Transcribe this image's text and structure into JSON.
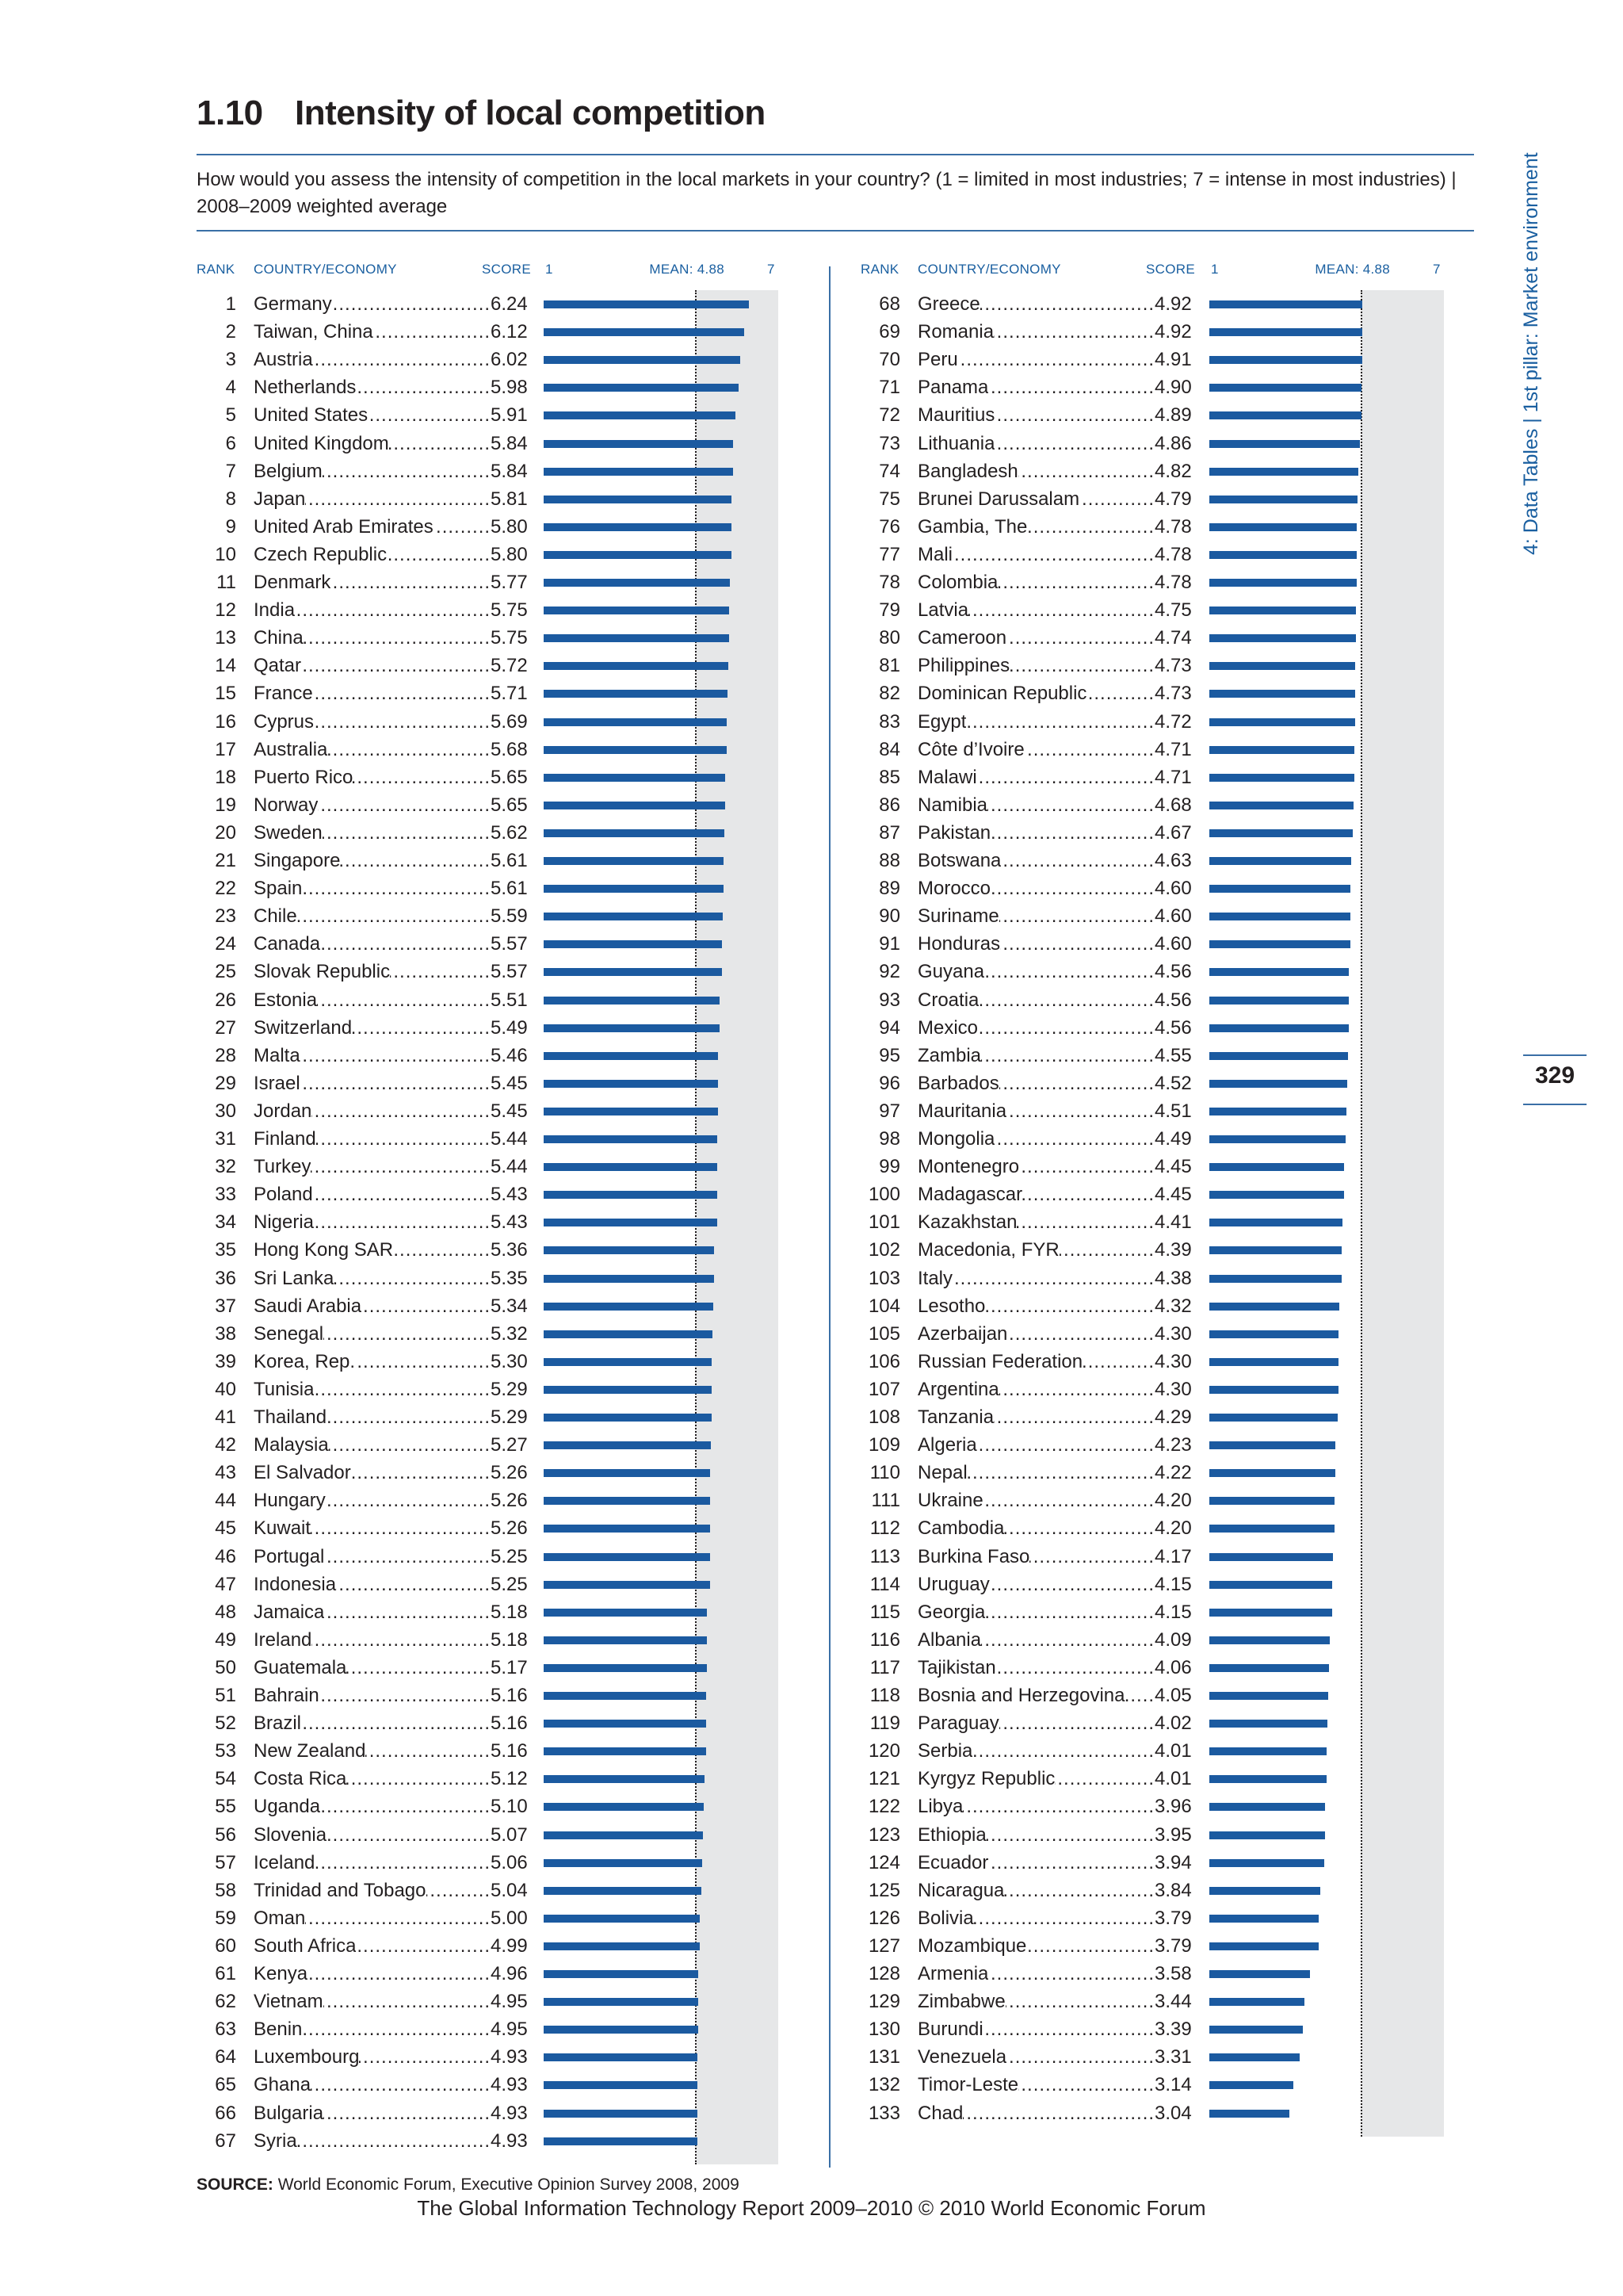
{
  "header": {
    "number": "1.10",
    "title": "Intensity of local competition",
    "question": "How would you assess the intensity of competition in the local markets in your country? (1 = limited in most industries; 7 = intense in most industries) | 2008–2009 weighted average"
  },
  "columns": {
    "rank": "RANK",
    "country": "COUNTRY/ECONOMY",
    "score": "SCORE",
    "scale_min": "1",
    "mean": "MEAN: 4.88",
    "scale_max": "7"
  },
  "side_tab": "4: Data Tables | 1st pillar: Market environment",
  "page_number": "329",
  "source_label": "SOURCE:",
  "source_text": "World Economic Forum, Executive Opinion Survey 2008, 2009",
  "footer": "The Global Information Technology Report 2009–2010 © 2010 World Economic Forum",
  "colors": {
    "bar": "#1b5aa0",
    "background_band": "#e6e7e8",
    "accent": "#1a5fa0"
  },
  "chart_data": {
    "type": "bar",
    "orientation": "horizontal",
    "xlim": [
      1,
      7
    ],
    "mean": 4.88,
    "rows": [
      {
        "rank": "1",
        "name": "Germany",
        "score": "6.24"
      },
      {
        "rank": "2",
        "name": "Taiwan, China",
        "score": "6.12"
      },
      {
        "rank": "3",
        "name": "Austria",
        "score": "6.02"
      },
      {
        "rank": "4",
        "name": "Netherlands",
        "score": "5.98"
      },
      {
        "rank": "5",
        "name": "United States",
        "score": "5.91"
      },
      {
        "rank": "6",
        "name": "United Kingdom",
        "score": "5.84"
      },
      {
        "rank": "7",
        "name": "Belgium",
        "score": "5.84"
      },
      {
        "rank": "8",
        "name": "Japan",
        "score": "5.81"
      },
      {
        "rank": "9",
        "name": "United Arab Emirates",
        "score": "5.80"
      },
      {
        "rank": "10",
        "name": "Czech Republic",
        "score": "5.80"
      },
      {
        "rank": "11",
        "name": "Denmark",
        "score": "5.77"
      },
      {
        "rank": "12",
        "name": "India",
        "score": "5.75"
      },
      {
        "rank": "13",
        "name": "China",
        "score": "5.75"
      },
      {
        "rank": "14",
        "name": "Qatar",
        "score": "5.72"
      },
      {
        "rank": "15",
        "name": "France",
        "score": "5.71"
      },
      {
        "rank": "16",
        "name": "Cyprus",
        "score": "5.69"
      },
      {
        "rank": "17",
        "name": "Australia",
        "score": "5.68"
      },
      {
        "rank": "18",
        "name": "Puerto Rico",
        "score": "5.65"
      },
      {
        "rank": "19",
        "name": "Norway",
        "score": "5.65"
      },
      {
        "rank": "20",
        "name": "Sweden",
        "score": "5.62"
      },
      {
        "rank": "21",
        "name": "Singapore",
        "score": "5.61"
      },
      {
        "rank": "22",
        "name": "Spain",
        "score": "5.61"
      },
      {
        "rank": "23",
        "name": "Chile",
        "score": "5.59"
      },
      {
        "rank": "24",
        "name": "Canada",
        "score": "5.57"
      },
      {
        "rank": "25",
        "name": "Slovak Republic",
        "score": "5.57"
      },
      {
        "rank": "26",
        "name": "Estonia",
        "score": "5.51"
      },
      {
        "rank": "27",
        "name": "Switzerland",
        "score": "5.49"
      },
      {
        "rank": "28",
        "name": "Malta",
        "score": "5.46"
      },
      {
        "rank": "29",
        "name": "Israel",
        "score": "5.45"
      },
      {
        "rank": "30",
        "name": "Jordan",
        "score": "5.45"
      },
      {
        "rank": "31",
        "name": "Finland",
        "score": "5.44"
      },
      {
        "rank": "32",
        "name": "Turkey",
        "score": "5.44"
      },
      {
        "rank": "33",
        "name": "Poland",
        "score": "5.43"
      },
      {
        "rank": "34",
        "name": "Nigeria",
        "score": "5.43"
      },
      {
        "rank": "35",
        "name": "Hong Kong SAR",
        "score": "5.36"
      },
      {
        "rank": "36",
        "name": "Sri Lanka",
        "score": "5.35"
      },
      {
        "rank": "37",
        "name": "Saudi Arabia",
        "score": "5.34"
      },
      {
        "rank": "38",
        "name": "Senegal",
        "score": "5.32"
      },
      {
        "rank": "39",
        "name": "Korea, Rep.",
        "score": "5.30"
      },
      {
        "rank": "40",
        "name": "Tunisia",
        "score": "5.29"
      },
      {
        "rank": "41",
        "name": "Thailand",
        "score": "5.29"
      },
      {
        "rank": "42",
        "name": "Malaysia",
        "score": "5.27"
      },
      {
        "rank": "43",
        "name": "El Salvador",
        "score": "5.26"
      },
      {
        "rank": "44",
        "name": "Hungary",
        "score": "5.26"
      },
      {
        "rank": "45",
        "name": "Kuwait",
        "score": "5.26"
      },
      {
        "rank": "46",
        "name": "Portugal",
        "score": "5.25"
      },
      {
        "rank": "47",
        "name": "Indonesia",
        "score": "5.25"
      },
      {
        "rank": "48",
        "name": "Jamaica",
        "score": "5.18"
      },
      {
        "rank": "49",
        "name": "Ireland",
        "score": "5.18"
      },
      {
        "rank": "50",
        "name": "Guatemala",
        "score": "5.17"
      },
      {
        "rank": "51",
        "name": "Bahrain",
        "score": "5.16"
      },
      {
        "rank": "52",
        "name": "Brazil",
        "score": "5.16"
      },
      {
        "rank": "53",
        "name": "New Zealand",
        "score": "5.16"
      },
      {
        "rank": "54",
        "name": "Costa Rica",
        "score": "5.12"
      },
      {
        "rank": "55",
        "name": "Uganda",
        "score": "5.10"
      },
      {
        "rank": "56",
        "name": "Slovenia",
        "score": "5.07"
      },
      {
        "rank": "57",
        "name": "Iceland",
        "score": "5.06"
      },
      {
        "rank": "58",
        "name": "Trinidad and Tobago",
        "score": "5.04"
      },
      {
        "rank": "59",
        "name": "Oman",
        "score": "5.00"
      },
      {
        "rank": "60",
        "name": "South Africa",
        "score": "4.99"
      },
      {
        "rank": "61",
        "name": "Kenya",
        "score": "4.96"
      },
      {
        "rank": "62",
        "name": "Vietnam",
        "score": "4.95"
      },
      {
        "rank": "63",
        "name": "Benin",
        "score": "4.95"
      },
      {
        "rank": "64",
        "name": "Luxembourg",
        "score": "4.93"
      },
      {
        "rank": "65",
        "name": "Ghana",
        "score": "4.93"
      },
      {
        "rank": "66",
        "name": "Bulgaria",
        "score": "4.93"
      },
      {
        "rank": "67",
        "name": "Syria",
        "score": "4.93"
      },
      {
        "rank": "68",
        "name": "Greece",
        "score": "4.92"
      },
      {
        "rank": "69",
        "name": "Romania",
        "score": "4.92"
      },
      {
        "rank": "70",
        "name": "Peru",
        "score": "4.91"
      },
      {
        "rank": "71",
        "name": "Panama",
        "score": "4.90"
      },
      {
        "rank": "72",
        "name": "Mauritius",
        "score": "4.89"
      },
      {
        "rank": "73",
        "name": "Lithuania",
        "score": "4.86"
      },
      {
        "rank": "74",
        "name": "Bangladesh",
        "score": "4.82"
      },
      {
        "rank": "75",
        "name": "Brunei Darussalam",
        "score": "4.79"
      },
      {
        "rank": "76",
        "name": "Gambia, The",
        "score": "4.78"
      },
      {
        "rank": "77",
        "name": "Mali",
        "score": "4.78"
      },
      {
        "rank": "78",
        "name": "Colombia",
        "score": "4.78"
      },
      {
        "rank": "79",
        "name": "Latvia",
        "score": "4.75"
      },
      {
        "rank": "80",
        "name": "Cameroon",
        "score": "4.74"
      },
      {
        "rank": "81",
        "name": "Philippines",
        "score": "4.73"
      },
      {
        "rank": "82",
        "name": "Dominican Republic",
        "score": "4.73"
      },
      {
        "rank": "83",
        "name": "Egypt",
        "score": "4.72"
      },
      {
        "rank": "84",
        "name": "Côte d’Ivoire",
        "score": "4.71"
      },
      {
        "rank": "85",
        "name": "Malawi",
        "score": "4.71"
      },
      {
        "rank": "86",
        "name": "Namibia",
        "score": "4.68"
      },
      {
        "rank": "87",
        "name": "Pakistan",
        "score": "4.67"
      },
      {
        "rank": "88",
        "name": "Botswana",
        "score": "4.63"
      },
      {
        "rank": "89",
        "name": "Morocco",
        "score": "4.60"
      },
      {
        "rank": "90",
        "name": "Suriname",
        "score": "4.60"
      },
      {
        "rank": "91",
        "name": "Honduras",
        "score": "4.60"
      },
      {
        "rank": "92",
        "name": "Guyana",
        "score": "4.56"
      },
      {
        "rank": "93",
        "name": "Croatia",
        "score": "4.56"
      },
      {
        "rank": "94",
        "name": "Mexico",
        "score": "4.56"
      },
      {
        "rank": "95",
        "name": "Zambia",
        "score": "4.55"
      },
      {
        "rank": "96",
        "name": "Barbados",
        "score": "4.52"
      },
      {
        "rank": "97",
        "name": "Mauritania",
        "score": "4.51"
      },
      {
        "rank": "98",
        "name": "Mongolia",
        "score": "4.49"
      },
      {
        "rank": "99",
        "name": "Montenegro",
        "score": "4.45"
      },
      {
        "rank": "100",
        "name": "Madagascar",
        "score": "4.45"
      },
      {
        "rank": "101",
        "name": "Kazakhstan",
        "score": "4.41"
      },
      {
        "rank": "102",
        "name": "Macedonia, FYR",
        "score": "4.39"
      },
      {
        "rank": "103",
        "name": "Italy",
        "score": "4.38"
      },
      {
        "rank": "104",
        "name": "Lesotho",
        "score": "4.32"
      },
      {
        "rank": "105",
        "name": "Azerbaijan",
        "score": "4.30"
      },
      {
        "rank": "106",
        "name": "Russian Federation",
        "score": "4.30"
      },
      {
        "rank": "107",
        "name": "Argentina",
        "score": "4.30"
      },
      {
        "rank": "108",
        "name": "Tanzania",
        "score": "4.29"
      },
      {
        "rank": "109",
        "name": "Algeria",
        "score": "4.23"
      },
      {
        "rank": "110",
        "name": "Nepal",
        "score": "4.22"
      },
      {
        "rank": "111",
        "name": "Ukraine",
        "score": "4.20"
      },
      {
        "rank": "112",
        "name": "Cambodia",
        "score": "4.20"
      },
      {
        "rank": "113",
        "name": "Burkina Faso",
        "score": "4.17"
      },
      {
        "rank": "114",
        "name": "Uruguay",
        "score": "4.15"
      },
      {
        "rank": "115",
        "name": "Georgia",
        "score": "4.15"
      },
      {
        "rank": "116",
        "name": "Albania",
        "score": "4.09"
      },
      {
        "rank": "117",
        "name": "Tajikistan",
        "score": "4.06"
      },
      {
        "rank": "118",
        "name": "Bosnia and Herzegovina",
        "score": "4.05"
      },
      {
        "rank": "119",
        "name": "Paraguay",
        "score": "4.02"
      },
      {
        "rank": "120",
        "name": "Serbia",
        "score": "4.01"
      },
      {
        "rank": "121",
        "name": "Kyrgyz Republic",
        "score": "4.01"
      },
      {
        "rank": "122",
        "name": "Libya",
        "score": "3.96"
      },
      {
        "rank": "123",
        "name": "Ethiopia",
        "score": "3.95"
      },
      {
        "rank": "124",
        "name": "Ecuador",
        "score": "3.94"
      },
      {
        "rank": "125",
        "name": "Nicaragua",
        "score": "3.84"
      },
      {
        "rank": "126",
        "name": "Bolivia",
        "score": "3.79"
      },
      {
        "rank": "127",
        "name": "Mozambique",
        "score": "3.79"
      },
      {
        "rank": "128",
        "name": "Armenia",
        "score": "3.58"
      },
      {
        "rank": "129",
        "name": "Zimbabwe",
        "score": "3.44"
      },
      {
        "rank": "130",
        "name": "Burundi",
        "score": "3.39"
      },
      {
        "rank": "131",
        "name": "Venezuela",
        "score": "3.31"
      },
      {
        "rank": "132",
        "name": "Timor-Leste",
        "score": "3.14"
      },
      {
        "rank": "133",
        "name": "Chad",
        "score": "3.04"
      }
    ]
  }
}
